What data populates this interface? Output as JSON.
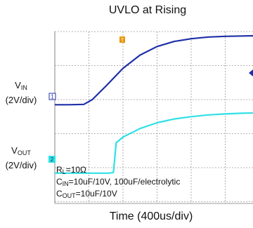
{
  "title": "UVLO at Rising",
  "xlabel": "Time (400us/div)",
  "channels": [
    {
      "main": "V",
      "sub": "IN",
      "scale": "(2V/div)",
      "marker": "1"
    },
    {
      "main": "V",
      "sub": "OUT",
      "scale": "(2V/div)",
      "marker": "2"
    }
  ],
  "trigger_marker": "T",
  "notes": [
    {
      "main": "R",
      "sub": "L",
      "rest": "=10Ω"
    },
    {
      "main": "C",
      "sub": "IN",
      "rest": "=10uF/10V, 100uF/electrolytic"
    },
    {
      "main": "C",
      "sub": "OUT",
      "rest": "=10uF/10V"
    }
  ],
  "colors": {
    "vin": "#1f2fa8",
    "vout": "#2fe0e6",
    "grid": "#9a9a9a",
    "trigger": "#e8960c"
  },
  "chart_data": {
    "type": "line",
    "title": "UVLO at Rising",
    "xlabel": "Time (400us/div)",
    "ylabel": "",
    "x_units": "div",
    "y_units": "div",
    "xlim": [
      0,
      6
    ],
    "ylim": [
      0,
      6
    ],
    "grid": true,
    "series": [
      {
        "name": "VIN",
        "x": [
          0,
          0.4,
          0.85,
          1.1,
          1.5,
          2.0,
          2.5,
          3.0,
          3.5,
          4.0,
          4.5,
          5.0,
          5.5,
          6.0
        ],
        "y": [
          3.85,
          3.85,
          3.86,
          4.0,
          4.4,
          4.92,
          5.31,
          5.56,
          5.71,
          5.79,
          5.84,
          5.86,
          5.87,
          5.88
        ]
      },
      {
        "name": "VOUT",
        "x": [
          0,
          0.5,
          1.0,
          1.6,
          1.72,
          1.8,
          2.0,
          2.5,
          3.0,
          3.5,
          4.0,
          4.5,
          5.0,
          5.5,
          6.0
        ],
        "y": [
          1.84,
          1.84,
          1.84,
          1.84,
          1.86,
          2.73,
          2.9,
          3.15,
          3.32,
          3.43,
          3.5,
          3.55,
          3.58,
          3.6,
          3.61
        ]
      }
    ]
  }
}
